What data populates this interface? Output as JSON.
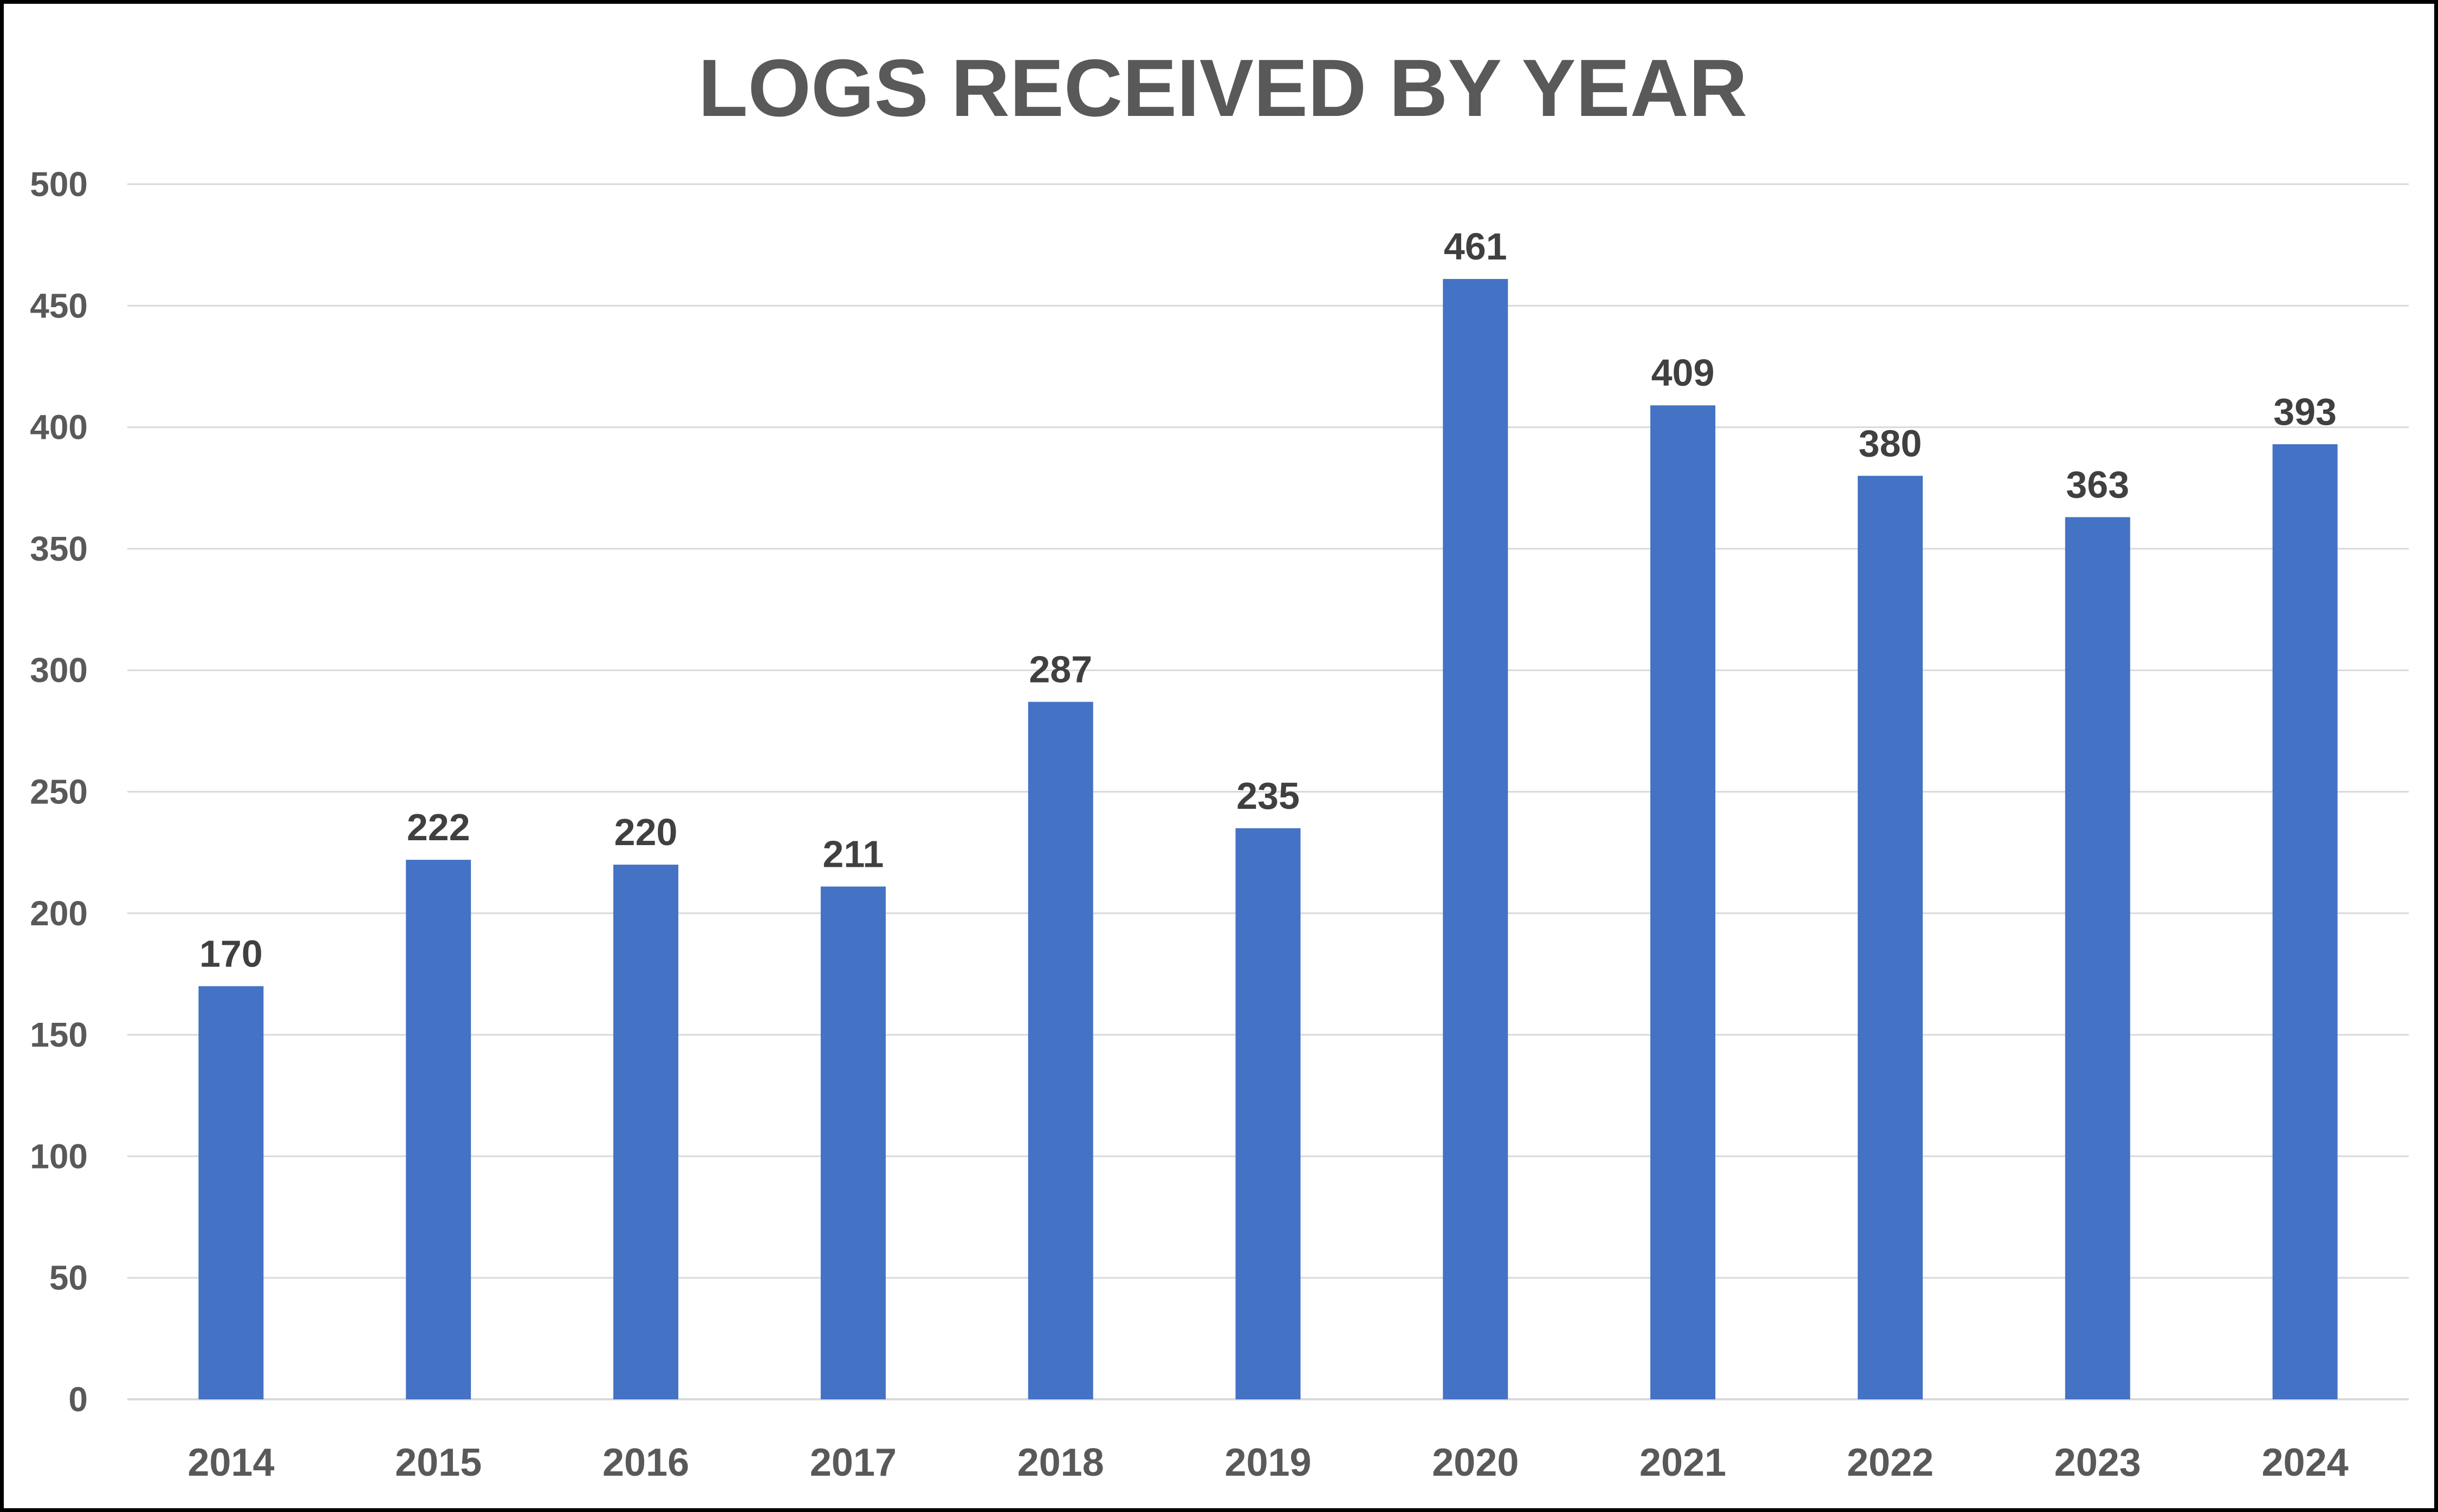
{
  "chart_data": {
    "type": "bar",
    "title": "LOGS RECEIVED BY YEAR",
    "categories": [
      "2014",
      "2015",
      "2016",
      "2017",
      "2018",
      "2019",
      "2020",
      "2021",
      "2022",
      "2023",
      "2024"
    ],
    "values": [
      170,
      222,
      220,
      211,
      287,
      235,
      461,
      409,
      380,
      363,
      393
    ],
    "ylim": [
      0,
      500
    ],
    "yticks": [
      "0",
      "50",
      "100",
      "150",
      "200",
      "250",
      "300",
      "350",
      "400",
      "450",
      "500"
    ],
    "grid": true,
    "legend": "none",
    "colors": {
      "bar": "#4472C4",
      "grid": "#D9D9D9",
      "axis_text": "#595959",
      "data_label": "#404040",
      "title": "#595959",
      "border": "#000000"
    }
  }
}
